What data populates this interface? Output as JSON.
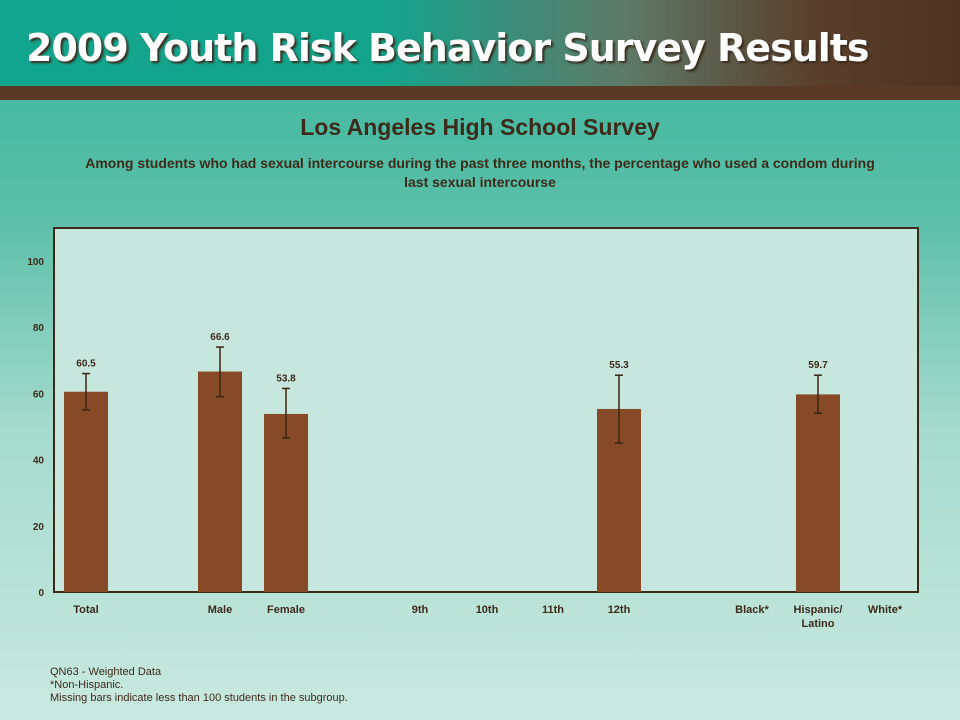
{
  "banner": {
    "title": "2009 Youth Risk Behavior Survey Results"
  },
  "chart_data": {
    "type": "bar",
    "title": "Los Angeles High School Survey",
    "subtitle": "Among students who had sexual intercourse during the past three months, the percentage who used a condom during last sexual intercourse",
    "categories": [
      "Total",
      "Male",
      "Female",
      "9th",
      "10th",
      "11th",
      "12th",
      "Black*",
      "Hispanic/ Latino",
      "White*"
    ],
    "values": [
      60.5,
      66.6,
      53.8,
      null,
      null,
      null,
      55.3,
      null,
      59.7,
      null
    ],
    "error_bars": [
      [
        55.0,
        66.0
      ],
      [
        59.0,
        74.0
      ],
      [
        46.5,
        61.5
      ],
      null,
      null,
      null,
      [
        45.0,
        65.5
      ],
      null,
      [
        54.0,
        65.5
      ],
      null
    ],
    "ylim": [
      0,
      110
    ],
    "yticks": [
      0,
      20,
      40,
      60,
      80,
      100
    ],
    "grid": false,
    "colors": {
      "bar": "#874a26",
      "error": "#3a2412",
      "frame_bg": "#c7e7de",
      "frame_border": "#3b2a1a"
    }
  },
  "footnotes": [
    "QN63 - Weighted Data",
    "*Non-Hispanic.",
    "Missing bars indicate less than 100 students in the subgroup."
  ]
}
